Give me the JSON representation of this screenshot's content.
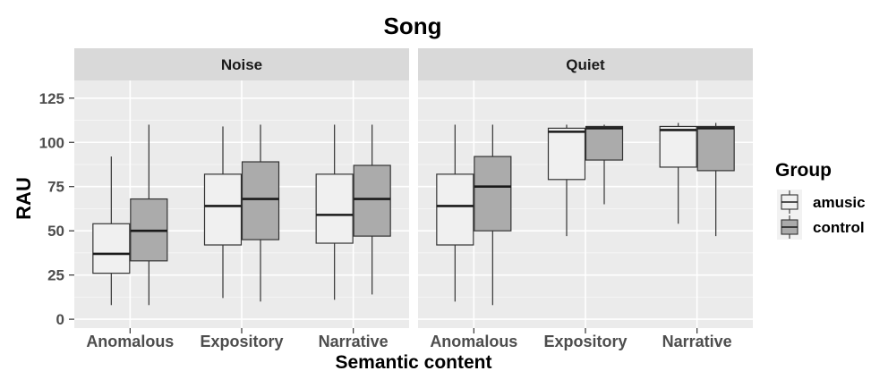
{
  "chart_data": {
    "type": "box",
    "title": "Song",
    "xlabel": "Semantic content",
    "ylabel": "RAU",
    "ylim": [
      -5,
      135
    ],
    "yticks": [
      0,
      25,
      50,
      75,
      100,
      125
    ],
    "categories": [
      "Anomalous",
      "Expository",
      "Narrative"
    ],
    "grid": true,
    "legend": {
      "title": "Group",
      "position": "right",
      "entries": [
        {
          "name": "amusic",
          "color": "#f0f0f0"
        },
        {
          "name": "control",
          "color": "#ababab"
        }
      ]
    },
    "facets": [
      {
        "label": "Noise",
        "boxes": [
          {
            "category": "Anomalous",
            "group": "amusic",
            "min": 8,
            "q1": 26,
            "median": 37,
            "q3": 54,
            "max": 92
          },
          {
            "category": "Anomalous",
            "group": "control",
            "min": 8,
            "q1": 33,
            "median": 50,
            "q3": 68,
            "max": 110
          },
          {
            "category": "Expository",
            "group": "amusic",
            "min": 12,
            "q1": 42,
            "median": 64,
            "q3": 82,
            "max": 109
          },
          {
            "category": "Expository",
            "group": "control",
            "min": 10,
            "q1": 45,
            "median": 68,
            "q3": 89,
            "max": 110
          },
          {
            "category": "Narrative",
            "group": "amusic",
            "min": 11,
            "q1": 43,
            "median": 59,
            "q3": 82,
            "max": 110
          },
          {
            "category": "Narrative",
            "group": "control",
            "min": 14,
            "q1": 47,
            "median": 68,
            "q3": 87,
            "max": 110
          }
        ]
      },
      {
        "label": "Quiet",
        "boxes": [
          {
            "category": "Anomalous",
            "group": "amusic",
            "min": 10,
            "q1": 42,
            "median": 64,
            "q3": 82,
            "max": 110
          },
          {
            "category": "Anomalous",
            "group": "control",
            "min": 8,
            "q1": 50,
            "median": 75,
            "q3": 92,
            "max": 110
          },
          {
            "category": "Expository",
            "group": "amusic",
            "min": 47,
            "q1": 79,
            "median": 106,
            "q3": 108,
            "max": 110
          },
          {
            "category": "Expository",
            "group": "control",
            "min": 65,
            "q1": 90,
            "median": 108,
            "q3": 109,
            "max": 110
          },
          {
            "category": "Narrative",
            "group": "amusic",
            "min": 54,
            "q1": 86,
            "median": 107,
            "q3": 109,
            "max": 111
          },
          {
            "category": "Narrative",
            "group": "control",
            "min": 47,
            "q1": 84,
            "median": 108,
            "q3": 109,
            "max": 111
          }
        ]
      }
    ]
  }
}
